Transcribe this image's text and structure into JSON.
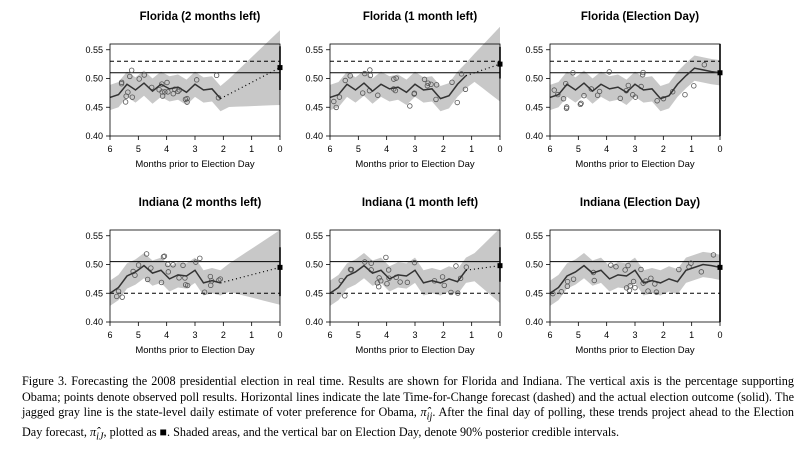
{
  "chart_data": [
    {
      "type": "line",
      "state": "Florida",
      "title": "Florida (2 months left)",
      "xlabel": "Months prior to Election Day",
      "x_ticks": [
        "6",
        "5",
        "4",
        "3",
        "2",
        "1",
        "0"
      ],
      "y_ticks": [
        "0.40",
        "0.45",
        "0.50",
        "0.55"
      ],
      "xlim": [
        6,
        0
      ],
      "ylim": [
        0.4,
        0.56
      ],
      "forecast_dashed": 0.53,
      "outcome_solid": 0.51,
      "cutoff_month": 2,
      "ef": 0.519,
      "ef_ci": [
        0.48,
        0.556
      ]
    },
    {
      "type": "line",
      "state": "Florida",
      "title": "Florida (1 month left)",
      "xlabel": "Months prior to Election Day",
      "x_ticks": [
        "6",
        "5",
        "4",
        "3",
        "2",
        "1",
        "0"
      ],
      "y_ticks": [
        "0.40",
        "0.45",
        "0.50",
        "0.55"
      ],
      "xlim": [
        6,
        0
      ],
      "ylim": [
        0.4,
        0.56
      ],
      "forecast_dashed": 0.53,
      "outcome_solid": 0.51,
      "cutoff_month": 1,
      "ef": 0.525,
      "ef_ci": [
        0.5,
        0.555
      ]
    },
    {
      "type": "line",
      "state": "Florida",
      "title": "Florida (Election Day)",
      "xlabel": "Months prior to Election Day",
      "x_ticks": [
        "6",
        "5",
        "4",
        "3",
        "2",
        "1",
        "0"
      ],
      "y_ticks": [
        "0.40",
        "0.45",
        "0.50",
        "0.55"
      ],
      "xlim": [
        6,
        0
      ],
      "ylim": [
        0.4,
        0.56
      ],
      "forecast_dashed": 0.53,
      "outcome_solid": 0.51,
      "cutoff_month": 0,
      "ef": 0.51,
      "ef_ci": [
        0.4,
        0.56
      ]
    },
    {
      "type": "line",
      "state": "Indiana",
      "title": "Indiana (2 months left)",
      "xlabel": "Months prior to Election Day",
      "x_ticks": [
        "6",
        "5",
        "4",
        "3",
        "2",
        "1",
        "0"
      ],
      "y_ticks": [
        "0.40",
        "0.45",
        "0.50",
        "0.55"
      ],
      "xlim": [
        6,
        0
      ],
      "ylim": [
        0.4,
        0.56
      ],
      "forecast_dashed": 0.45,
      "outcome_solid": 0.505,
      "cutoff_month": 2,
      "ef": 0.495,
      "ef_ci": [
        0.445,
        0.53
      ]
    },
    {
      "type": "line",
      "state": "Indiana",
      "title": "Indiana (1 month left)",
      "xlabel": "Months prior to Election Day",
      "x_ticks": [
        "6",
        "5",
        "4",
        "3",
        "2",
        "1",
        "0"
      ],
      "y_ticks": [
        "0.40",
        "0.45",
        "0.50",
        "0.55"
      ],
      "xlim": [
        6,
        0
      ],
      "ylim": [
        0.4,
        0.56
      ],
      "forecast_dashed": 0.45,
      "outcome_solid": 0.505,
      "cutoff_month": 1,
      "ef": 0.498,
      "ef_ci": [
        0.47,
        0.53
      ]
    },
    {
      "type": "line",
      "state": "Indiana",
      "title": "Indiana (Election Day)",
      "xlabel": "Months prior to Election Day",
      "x_ticks": [
        "6",
        "5",
        "4",
        "3",
        "2",
        "1",
        "0"
      ],
      "y_ticks": [
        "0.40",
        "0.45",
        "0.50",
        "0.55"
      ],
      "xlim": [
        6,
        0
      ],
      "ylim": [
        0.4,
        0.56
      ],
      "forecast_dashed": 0.45,
      "outcome_solid": 0.505,
      "cutoff_month": 0,
      "ef": 0.495,
      "ef_ci": [
        0.4,
        0.56
      ]
    }
  ],
  "trend": {
    "Florida": {
      "months": [
        6,
        5.7,
        5.4,
        5.1,
        4.8,
        4.5,
        4.2,
        3.9,
        3.6,
        3.3,
        3,
        2.7,
        2.4,
        2.1,
        1.8,
        1.5,
        1.2,
        0.9,
        0.6,
        0.3,
        0
      ],
      "values": [
        0.467,
        0.472,
        0.49,
        0.48,
        0.492,
        0.478,
        0.49,
        0.482,
        0.485,
        0.476,
        0.49,
        0.48,
        0.482,
        0.465,
        0.47,
        0.49,
        0.505,
        0.518,
        0.515,
        0.512,
        0.51
      ]
    },
    "Indiana": {
      "months": [
        6,
        5.7,
        5.4,
        5.1,
        4.8,
        4.5,
        4.2,
        3.9,
        3.6,
        3.3,
        3,
        2.7,
        2.4,
        2.1,
        1.8,
        1.5,
        1.2,
        0.9,
        0.6,
        0.3,
        0
      ],
      "values": [
        0.45,
        0.46,
        0.48,
        0.487,
        0.498,
        0.485,
        0.49,
        0.475,
        0.482,
        0.48,
        0.49,
        0.468,
        0.472,
        0.468,
        0.475,
        0.47,
        0.49,
        0.495,
        0.5,
        0.498,
        0.495
      ]
    }
  },
  "caption": {
    "p1": "Figure 3.  Forecasting the 2008 presidential election in real time. Results are shown for Florida and Indiana. The vertical axis is the percentage supporting Obama; points denote observed poll results. Horizontal lines indicate the late Time-for-Change forecast (dashed) and the actual election outcome (solid). The jagged gray line is the state-level daily estimate of voter preference for Obama, ",
    "sym1": "π̂",
    "sub1": "ij",
    "p2": ". After the final day of polling, these trends project ahead to the Election Day forecast, ",
    "sym2": "π̂",
    "sub2": "iJ",
    "p3": ", plotted as ■. Shaded areas, and the vertical bar on Election Day, denote 90% posterior credible intervals."
  }
}
